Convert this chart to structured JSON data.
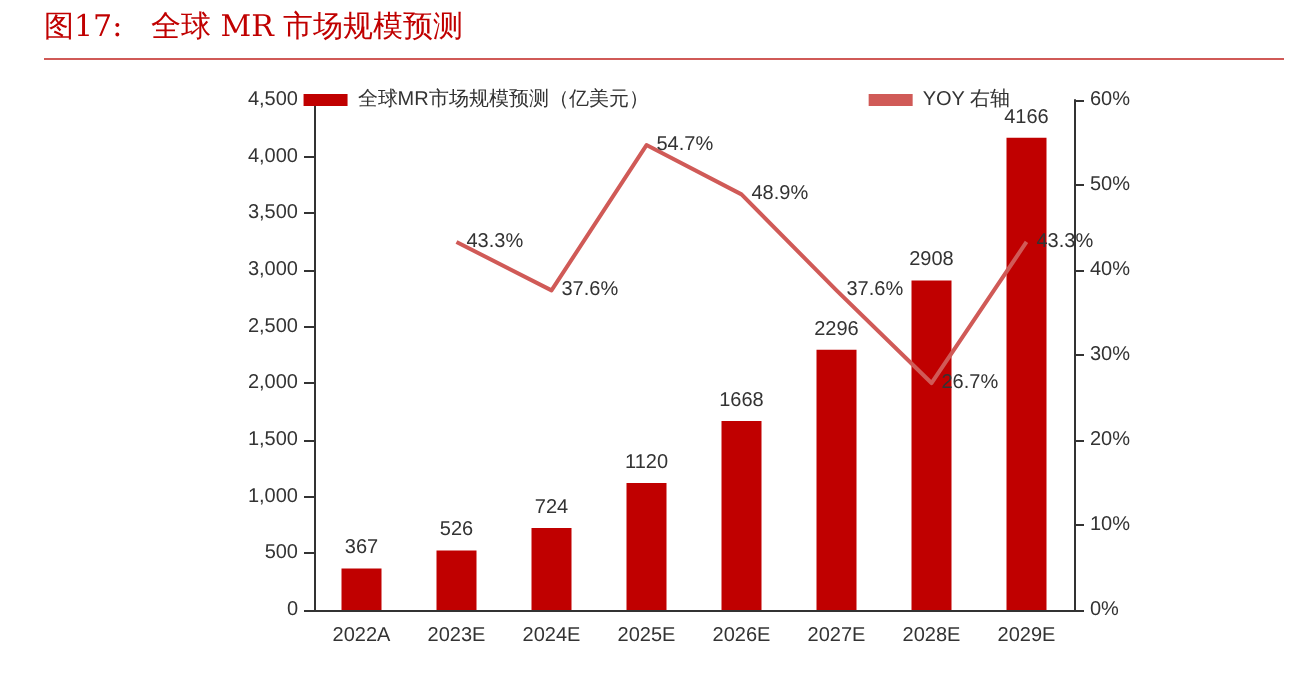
{
  "chart_data": {
    "type": "bar",
    "title": "图17:   全球 MR 市场规模预测",
    "categories": [
      "2022A",
      "2023E",
      "2024E",
      "2025E",
      "2026E",
      "2027E",
      "2028E",
      "2029E"
    ],
    "series": [
      {
        "name": "全球MR市场规模预测（亿美元）",
        "color": "#c00000",
        "values": [
          367,
          526,
          724,
          1120,
          1668,
          2296,
          2908,
          4166
        ]
      },
      {
        "name": "YOY 右轴",
        "type": "line",
        "axis": "y2",
        "color": "#d05a57",
        "values": [
          null,
          43.3,
          37.6,
          54.7,
          48.9,
          37.6,
          26.7,
          43.3
        ],
        "value_labels": [
          null,
          "43.3%",
          "37.6%",
          "54.7%",
          "48.9%",
          "37.6%",
          "26.7%",
          "43.3%"
        ]
      }
    ],
    "data_labels": true,
    "ylim": [
      0,
      4500
    ],
    "yticks": [
      0,
      500,
      {
        "value": 1000,
        "label": "1,000"
      },
      {
        "value": 1500,
        "label": "1,500"
      },
      {
        "value": 2000,
        "label": "2,000"
      },
      {
        "value": 2500,
        "label": "2,500"
      },
      {
        "value": 3000,
        "label": "3,000"
      },
      {
        "value": 3500,
        "label": "3,500"
      },
      {
        "value": 4000,
        "label": "4,000"
      },
      {
        "value": 4500,
        "label": "4,500"
      }
    ],
    "y2lim": [
      0,
      60
    ],
    "y2ticks": [
      {
        "value": 0,
        "label": "0%"
      },
      {
        "value": 10,
        "label": "10%"
      },
      {
        "value": 20,
        "label": "20%"
      },
      {
        "value": 30,
        "label": "30%"
      },
      {
        "value": 40,
        "label": "40%"
      },
      {
        "value": 50,
        "label": "50%"
      },
      {
        "value": 60,
        "label": "60%"
      }
    ],
    "legend": "top",
    "grid": false,
    "marker": "none",
    "line_style": "solid"
  }
}
